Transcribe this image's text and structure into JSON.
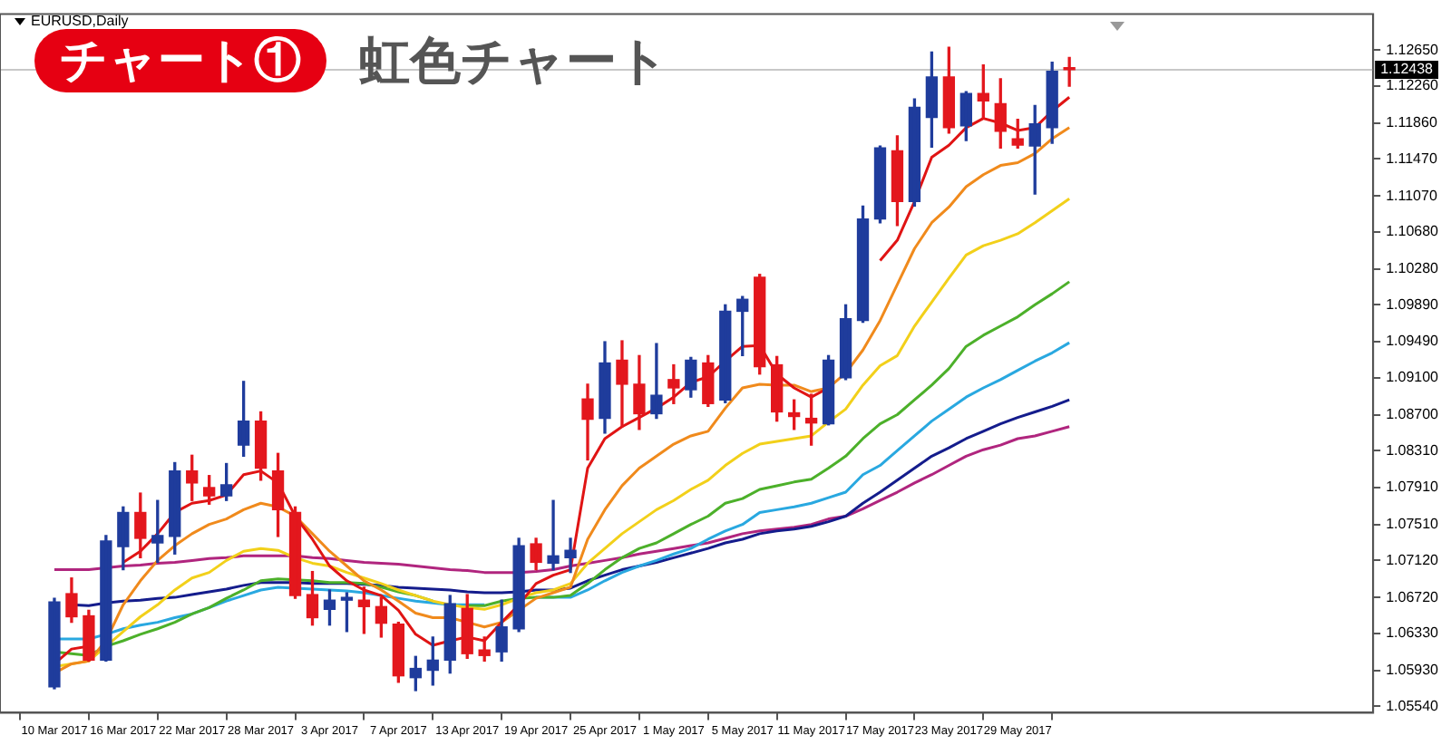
{
  "chart_data": {
    "type": "candlestick",
    "title": "チャート①",
    "subtitle": "虹色チャート",
    "annotations": [
      "EURUSD,Daily"
    ],
    "categories": [
      "10 Mar 2017",
      null,
      null,
      null,
      "16 Mar 2017",
      null,
      null,
      null,
      "22 Mar 2017",
      null,
      null,
      null,
      "28 Mar 2017",
      null,
      null,
      null,
      "3 Apr 2017",
      null,
      null,
      null,
      "7 Apr 2017",
      null,
      null,
      null,
      "13 Apr 2017",
      null,
      null,
      null,
      "19 Apr 2017",
      null,
      null,
      null,
      "25 Apr 2017",
      null,
      null,
      null,
      "1 May 2017",
      null,
      null,
      null,
      "5 May 2017",
      null,
      null,
      null,
      "11 May 2017",
      null,
      null,
      null,
      "17 May 2017",
      null,
      null,
      null,
      "23 May 2017",
      null,
      null,
      null,
      "29 May 2017",
      null,
      null,
      null
    ],
    "ohlc": [
      [
        1.0575,
        1.0671,
        1.0573,
        1.0667
      ],
      [
        1.0676,
        1.0693,
        1.0645,
        1.0651
      ],
      [
        1.0652,
        1.0658,
        1.0603,
        1.0604
      ],
      [
        1.0604,
        1.0739,
        1.0603,
        1.0733
      ],
      [
        1.0727,
        1.077,
        1.0702,
        1.0764
      ],
      [
        1.0764,
        1.0785,
        1.0715,
        1.0736
      ],
      [
        1.0731,
        1.0777,
        1.071,
        1.0739
      ],
      [
        1.0738,
        1.0818,
        1.0719,
        1.0809
      ],
      [
        1.0809,
        1.0826,
        1.0777,
        1.0796
      ],
      [
        1.0791,
        1.0804,
        1.0773,
        1.0782
      ],
      [
        1.0782,
        1.0817,
        1.0777,
        1.0794
      ],
      [
        1.0837,
        1.0906,
        1.0825,
        1.0863
      ],
      [
        1.0863,
        1.0873,
        1.0799,
        1.0812
      ],
      [
        1.0809,
        1.0828,
        1.0738,
        1.0767
      ],
      [
        1.0764,
        1.077,
        1.0671,
        1.0674
      ],
      [
        1.0675,
        1.07,
        1.0642,
        1.065
      ],
      [
        1.0659,
        1.068,
        1.0642,
        1.0669
      ],
      [
        1.0669,
        1.0677,
        1.0635,
        1.0672
      ],
      [
        1.0669,
        1.0683,
        1.0633,
        1.0662
      ],
      [
        1.0662,
        1.0672,
        1.0629,
        1.0644
      ],
      [
        1.0643,
        1.0645,
        1.058,
        1.0587
      ],
      [
        1.0585,
        1.0608,
        1.0571,
        1.0595
      ],
      [
        1.0593,
        1.0629,
        1.0577,
        1.0604
      ],
      [
        1.0604,
        1.0674,
        1.059,
        1.0665
      ],
      [
        1.066,
        1.0675,
        1.0606,
        1.0611
      ],
      [
        1.0615,
        1.0629,
        1.0603,
        1.0609
      ],
      [
        1.0613,
        1.0669,
        1.0603,
        1.064
      ],
      [
        1.0638,
        1.0736,
        1.0635,
        1.0728
      ],
      [
        1.073,
        1.0736,
        1.0702,
        1.071
      ],
      [
        1.0709,
        1.0777,
        1.0702,
        1.0717
      ],
      [
        1.0715,
        1.0736,
        1.0699,
        1.0723
      ],
      [
        1.0887,
        1.0903,
        1.0821,
        1.0865
      ],
      [
        1.0866,
        1.0949,
        1.085,
        1.0926
      ],
      [
        1.0929,
        1.095,
        1.0857,
        1.0903
      ],
      [
        1.0903,
        1.0934,
        1.0854,
        1.0871
      ],
      [
        1.0871,
        1.0947,
        1.0866,
        1.0891
      ],
      [
        1.0908,
        1.0924,
        1.0882,
        1.0899
      ],
      [
        1.0897,
        1.0932,
        1.0889,
        1.0929
      ],
      [
        1.0926,
        1.0934,
        1.0879,
        1.0882
      ],
      [
        1.0886,
        1.0989,
        1.0883,
        1.0982
      ],
      [
        1.0982,
        1.0998,
        1.0934,
        1.0995
      ],
      [
        1.1019,
        1.1022,
        1.0914,
        1.0922
      ],
      [
        1.0924,
        1.0933,
        1.0863,
        1.0873
      ],
      [
        1.0872,
        1.0886,
        1.0854,
        1.0868
      ],
      [
        1.0866,
        1.0892,
        1.0837,
        1.0861
      ],
      [
        1.086,
        1.0934,
        1.0859,
        1.0929
      ],
      [
        1.091,
        1.0989,
        1.0908,
        1.0974
      ],
      [
        1.0972,
        1.1096,
        1.097,
        1.1082
      ],
      [
        1.1082,
        1.1161,
        1.1078,
        1.1159
      ],
      [
        1.1156,
        1.1172,
        1.1075,
        1.1101
      ],
      [
        1.1101,
        1.1212,
        1.1096,
        1.1203
      ],
      [
        1.1192,
        1.1263,
        1.116,
        1.1236
      ],
      [
        1.1236,
        1.1268,
        1.1175,
        1.1181
      ],
      [
        1.1183,
        1.122,
        1.1167,
        1.1218
      ],
      [
        1.1218,
        1.1249,
        1.1191,
        1.121
      ],
      [
        1.1207,
        1.1234,
        1.1159,
        1.1177
      ],
      [
        1.1169,
        1.119,
        1.1159,
        1.1162
      ],
      [
        1.1161,
        1.1205,
        1.1109,
        1.1185
      ],
      [
        1.1181,
        1.1252,
        1.1164,
        1.1242
      ],
      [
        1.1246,
        1.1257,
        1.1226,
        1.12438
      ]
    ],
    "colors": [
      "#1f3c9c",
      "#e3171d",
      "#e3171d",
      "#1f3c9c",
      "#1f3c9c",
      "#e3171d",
      "#1f3c9c",
      "#1f3c9c",
      "#e3171d",
      "#e3171d",
      "#1f3c9c",
      "#1f3c9c",
      "#e3171d",
      "#e3171d",
      "#e3171d",
      "#e3171d",
      "#1f3c9c",
      "#1f3c9c",
      "#e3171d",
      "#e3171d",
      "#e3171d",
      "#1f3c9c",
      "#1f3c9c",
      "#1f3c9c",
      "#e3171d",
      "#e3171d",
      "#1f3c9c",
      "#1f3c9c",
      "#e3171d",
      "#1f3c9c",
      "#1f3c9c",
      "#e3171d",
      "#1f3c9c",
      "#e3171d",
      "#e3171d",
      "#1f3c9c",
      "#e3171d",
      "#1f3c9c",
      "#e3171d",
      "#1f3c9c",
      "#1f3c9c",
      "#e3171d",
      "#e3171d",
      "#e3171d",
      "#e3171d",
      "#1f3c9c",
      "#1f3c9c",
      "#1f3c9c",
      "#1f3c9c",
      "#e3171d",
      "#1f3c9c",
      "#1f3c9c",
      "#e3171d",
      "#1f3c9c",
      "#e3171d",
      "#e3171d",
      "#e3171d",
      "#1f3c9c",
      "#1f3c9c",
      "#e3171d"
    ],
    "series": [
      {
        "type": "line",
        "color": "#e01414",
        "values": [
          1.06,
          1.0616,
          1.0619,
          null,
          1.071,
          1.0722,
          1.0741,
          1.0764,
          1.0774,
          1.0777,
          1.0783,
          1.0805,
          1.0809,
          1.0796,
          1.076,
          1.0735,
          1.0706,
          1.069,
          1.068,
          1.0674,
          1.0658,
          1.0632,
          1.062,
          1.0625,
          1.0629,
          1.0625,
          1.0645,
          1.0664,
          1.0687,
          1.0696,
          1.0702,
          1.0812,
          1.0844,
          1.0857,
          1.0867,
          1.0877,
          1.0889,
          1.0905,
          1.0911,
          1.0928,
          1.0944,
          1.0945,
          1.0914,
          1.0899,
          1.0889,
          1.0899,
          null,
          null,
          1.1037,
          1.1059,
          1.1101,
          1.1149,
          1.1162,
          1.1181,
          1.1191,
          1.1186,
          1.1178,
          1.1181,
          1.1199,
          1.1214
        ]
      },
      {
        "type": "line",
        "color": "#f08a1c",
        "values": [
          1.059,
          1.06,
          1.0603,
          1.0625,
          1.0664,
          1.069,
          1.0712,
          1.0728,
          1.0741,
          1.0751,
          1.0757,
          1.0767,
          1.0774,
          1.077,
          1.076,
          1.0741,
          1.0722,
          1.0706,
          1.069,
          1.068,
          1.0668,
          1.0655,
          1.065,
          1.065,
          1.0645,
          1.064,
          1.0645,
          1.0658,
          1.0671,
          1.0677,
          1.0683,
          1.0735,
          1.0767,
          1.0793,
          1.0812,
          1.0825,
          1.0838,
          1.0847,
          1.0852,
          1.0877,
          1.0899,
          1.0903,
          1.0902,
          1.0902,
          1.0895,
          1.0899,
          1.0915,
          1.094,
          1.0972,
          1.1011,
          1.105,
          1.1078,
          1.1095,
          1.1117,
          1.113,
          1.114,
          1.1143,
          1.1153,
          1.1169,
          1.1181
        ]
      },
      {
        "type": "line",
        "color": "#f2d01a",
        "values": [
          1.0597,
          1.06,
          1.0603,
          1.0619,
          1.0635,
          1.0651,
          1.0664,
          1.068,
          1.0693,
          1.0699,
          1.0712,
          1.0722,
          1.0725,
          1.0723,
          1.0715,
          1.0709,
          1.0706,
          1.0699,
          1.0693,
          1.0687,
          1.068,
          1.0674,
          1.0668,
          1.0664,
          1.0661,
          1.0659,
          1.0664,
          1.0671,
          1.0677,
          1.068,
          1.0687,
          1.0709,
          1.0725,
          1.0741,
          1.0754,
          1.0767,
          1.0777,
          1.0789,
          1.0799,
          1.0815,
          1.0828,
          1.0838,
          1.0841,
          1.0844,
          1.0847,
          1.0862,
          1.0876,
          1.0902,
          1.0923,
          1.0934,
          1.0966,
          1.0992,
          1.1018,
          1.1043,
          1.1053,
          1.1059,
          1.1066,
          1.1078,
          1.1091,
          1.1104
        ]
      },
      {
        "type": "line",
        "color": "#4cb02a",
        "values": [
          1.0613,
          1.0611,
          1.0609,
          1.0619,
          1.0625,
          1.0632,
          1.0638,
          1.0645,
          1.0654,
          1.0661,
          1.0671,
          1.068,
          1.069,
          1.0692,
          1.0691,
          1.069,
          1.0688,
          1.0688,
          1.0687,
          1.0683,
          1.0678,
          1.0674,
          1.0668,
          null,
          1.0663,
          1.0663,
          1.0668,
          1.0671,
          1.0672,
          1.0672,
          1.0674,
          1.0687,
          1.0702,
          1.0715,
          1.0725,
          1.0731,
          1.0741,
          1.0751,
          1.076,
          1.0774,
          1.0779,
          1.0789,
          1.0793,
          1.0797,
          1.08,
          1.0812,
          1.0825,
          1.0844,
          1.086,
          1.087,
          1.0886,
          1.0902,
          1.092,
          1.0944,
          1.0956,
          1.0966,
          1.0976,
          1.0989,
          1.1001,
          1.1014
        ]
      },
      {
        "type": "line",
        "color": "#29a8e0",
        "values": [
          1.0627,
          1.0627,
          1.0627,
          1.0632,
          1.0638,
          1.0642,
          1.0645,
          1.065,
          1.0654,
          1.0661,
          1.0668,
          1.0674,
          1.068,
          1.0683,
          1.0682,
          1.0681,
          1.068,
          1.0679,
          1.0677,
          1.0674,
          1.0671,
          1.0668,
          1.0666,
          1.0664,
          1.0664,
          1.0664,
          null,
          null,
          1.0672,
          1.0672,
          1.0672,
          1.068,
          1.069,
          1.0699,
          1.0706,
          1.0712,
          1.0719,
          1.0725,
          1.0735,
          1.0744,
          1.0751,
          1.0764,
          1.0767,
          1.077,
          1.0774,
          1.078,
          1.0786,
          1.0805,
          1.0815,
          1.0831,
          1.0847,
          1.0863,
          1.0876,
          1.0889,
          1.0899,
          1.0908,
          1.0918,
          1.0928,
          1.0937,
          1.0948
        ]
      },
      {
        "type": "line",
        "color": "#141c8c",
        "values": [
          null,
          1.0664,
          1.0663,
          1.0666,
          1.0668,
          1.0669,
          1.0671,
          1.0672,
          1.0675,
          1.0678,
          1.0681,
          1.0685,
          1.0688,
          1.0688,
          1.0688,
          1.0687,
          1.0687,
          1.0687,
          1.0686,
          1.0685,
          1.0683,
          1.0682,
          1.0681,
          1.068,
          1.0678,
          1.0677,
          1.0677,
          1.0678,
          1.068,
          1.068,
          1.0682,
          1.069,
          1.0696,
          1.0702,
          1.0706,
          1.071,
          1.0715,
          1.072,
          1.0725,
          1.0731,
          1.0735,
          1.0741,
          1.0744,
          1.0746,
          1.0749,
          1.0754,
          1.076,
          1.0774,
          1.0786,
          1.0799,
          1.0812,
          1.0825,
          1.0834,
          1.0844,
          1.0852,
          1.086,
          1.0867,
          1.0873,
          1.0879,
          1.0886
        ]
      },
      {
        "type": "line",
        "color": "#b0257e",
        "values": [
          1.0702,
          1.0702,
          1.0702,
          1.0704,
          1.0706,
          1.0707,
          1.0709,
          1.071,
          1.0712,
          1.0714,
          1.0715,
          1.0717,
          1.0717,
          1.0717,
          1.0717,
          1.0715,
          1.0714,
          1.0712,
          1.071,
          1.0709,
          1.0708,
          1.0706,
          1.0704,
          1.0702,
          1.0701,
          1.0699,
          1.0699,
          1.0699,
          1.07,
          1.0702,
          1.0706,
          1.0709,
          1.0712,
          1.0715,
          1.0719,
          1.0722,
          1.0725,
          1.0728,
          1.0731,
          1.0736,
          1.0741,
          1.0744,
          1.0746,
          1.0748,
          1.0751,
          1.0757,
          1.076,
          1.0768,
          1.0777,
          1.0786,
          1.0796,
          1.0805,
          1.0815,
          1.0825,
          1.0832,
          1.0837,
          1.0844,
          1.0847,
          1.0852,
          1.0857
        ]
      }
    ],
    "ylim": [
      1.0547,
      1.1304
    ],
    "yticks": [
      {
        "value": 1.1265,
        "label": "1.12650"
      },
      {
        "value": 1.1226,
        "label": "1.12260"
      },
      {
        "value": 1.1186,
        "label": "1.11860"
      },
      {
        "value": 1.1147,
        "label": "1.11470"
      },
      {
        "value": 1.1107,
        "label": "1.11070"
      },
      {
        "value": 1.1068,
        "label": "1.10680"
      },
      {
        "value": 1.1028,
        "label": "1.10280"
      },
      {
        "value": 1.0989,
        "label": "1.09890"
      },
      {
        "value": 1.0949,
        "label": "1.09490"
      },
      {
        "value": 1.091,
        "label": "1.09100"
      },
      {
        "value": 1.087,
        "label": "1.08700"
      },
      {
        "value": 1.0831,
        "label": "1.08310"
      },
      {
        "value": 1.0791,
        "label": "1.07910"
      },
      {
        "value": 1.0751,
        "label": "1.07510"
      },
      {
        "value": 1.0712,
        "label": "1.07120"
      },
      {
        "value": 1.0672,
        "label": "1.06720"
      },
      {
        "value": 1.0633,
        "label": "1.06330"
      },
      {
        "value": 1.0593,
        "label": "1.05930"
      },
      {
        "value": 1.0554,
        "label": "1.05540"
      }
    ],
    "ref_lines": [
      {
        "axis": "y",
        "value": 1.12438,
        "label": "1.12438",
        "color": "#c8c8c8"
      }
    ],
    "grid": false,
    "legend": false
  }
}
